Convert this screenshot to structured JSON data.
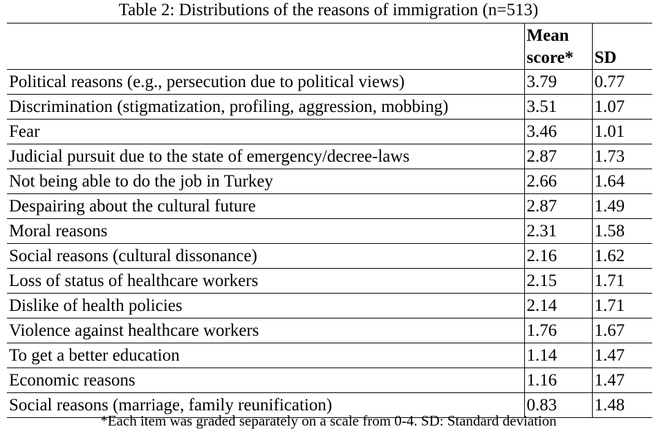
{
  "caption": "Table 2: Distributions of the reasons of immigration (n=513)",
  "table": {
    "headers": {
      "reason": "",
      "mean_line1": "Mean",
      "mean_line2": "score*",
      "sd": "SD"
    },
    "rows": [
      {
        "reason": "Political reasons (e.g., persecution due to political views)",
        "mean": "3.79",
        "sd": "0.77"
      },
      {
        "reason": "Discrimination (stigmatization, profiling, aggression, mobbing)",
        "mean": "3.51",
        "sd": "1.07"
      },
      {
        "reason": "Fear",
        "mean": "3.46",
        "sd": "1.01"
      },
      {
        "reason": "Judicial pursuit due to the state of emergency/decree-laws",
        "mean": "2.87",
        "sd": "1.73"
      },
      {
        "reason": "Not being able to do the job in Turkey",
        "mean": "2.66",
        "sd": "1.64"
      },
      {
        "reason": "Despairing about the cultural future",
        "mean": "2.87",
        "sd": "1.49"
      },
      {
        "reason": "Moral reasons",
        "mean": "2.31",
        "sd": "1.58"
      },
      {
        "reason": "Social reasons  (cultural dissonance)",
        "mean": "2.16",
        "sd": "1.62"
      },
      {
        "reason": "Loss of status of healthcare workers",
        "mean": "2.15",
        "sd": "1.71"
      },
      {
        "reason": "Dislike of health policies",
        "mean": "2.14",
        "sd": "1.71"
      },
      {
        "reason": "Violence against healthcare workers",
        "mean": "1.76",
        "sd": "1.67"
      },
      {
        "reason": "To get a better education",
        "mean": "1.14",
        "sd": "1.47"
      },
      {
        "reason": "Economic reasons",
        "mean": "1.16",
        "sd": "1.47"
      },
      {
        "reason": "Social reasons (marriage, family reunification)",
        "mean": "0.83",
        "sd": "1.48"
      }
    ]
  },
  "footnote": "*Each item was graded separately on a scale from 0-4. SD: Standard deviation"
}
